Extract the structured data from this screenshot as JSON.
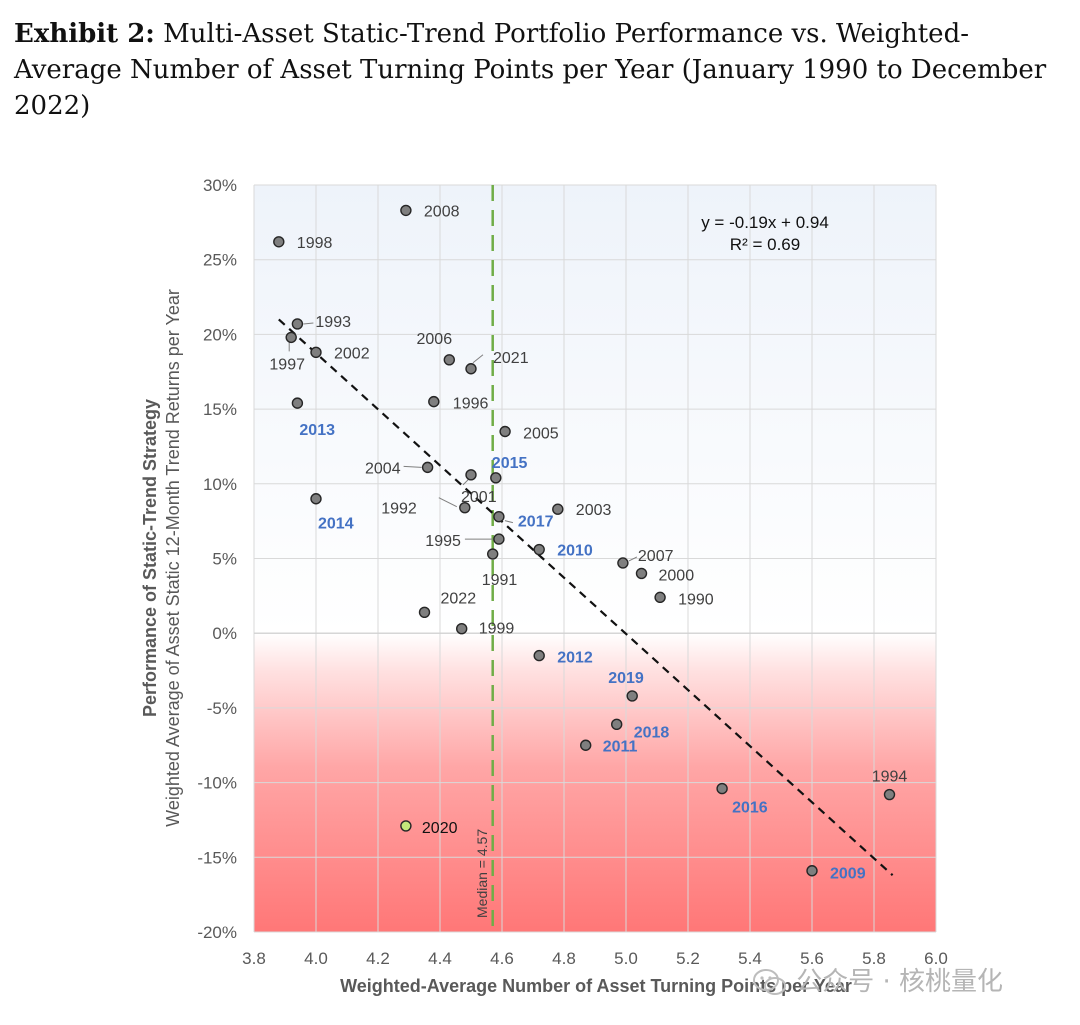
{
  "caption": {
    "label": "Exhibit 2:",
    "text": "Multi-Asset Static-Trend Portfolio Performance vs. Weighted-Average Number of Asset Turning Points per Year (January 1990 to December 2022)"
  },
  "watermark": {
    "text": "公众号 · 核桃量化"
  },
  "chart_data": {
    "type": "scatter",
    "title": "",
    "xlabel": "Weighted-Average Number of Asset Turning Points per Year",
    "ylabel_line1": "Performance of Static-Trend Strategy",
    "ylabel_line2": "Weighted Average of Asset Static 12-Month Trend Returns per Year",
    "xlim": [
      3.8,
      6.0
    ],
    "ylim": [
      -20,
      30
    ],
    "x_ticks": [
      3.8,
      4.0,
      4.2,
      4.4,
      4.6,
      4.8,
      5.0,
      5.2,
      5.4,
      5.6,
      5.8,
      6.0
    ],
    "x_tick_labels": [
      "3.8",
      "4.0",
      "4.2",
      "4.4",
      "4.6",
      "4.8",
      "5.0",
      "5.2",
      "5.4",
      "5.6",
      "5.8",
      "6.0"
    ],
    "y_ticks": [
      -20,
      -15,
      -10,
      -5,
      0,
      5,
      10,
      15,
      20,
      25,
      30
    ],
    "y_tick_labels": [
      "-20%",
      "-15%",
      "-10%",
      "-5%",
      "0%",
      "5%",
      "10%",
      "15%",
      "20%",
      "25%",
      "30%"
    ],
    "grid": true,
    "median_x": 4.57,
    "median_label": "Median = 4.57",
    "regression": {
      "equation": "y = -0.19x + 0.94",
      "r2": "R² = 0.69",
      "x_range": [
        3.88,
        5.86
      ],
      "y_range": [
        21.0,
        -16.2
      ]
    },
    "colors": {
      "point": "#7f7f7f",
      "highlight_point": "#c3e67a",
      "blue_label": "#4472c4",
      "dark_label": "#404040",
      "median_line": "#70ad47",
      "positive_band": "#eef3fa",
      "negative_band": "#ff7b7b"
    },
    "points": [
      {
        "year": "2008",
        "x": 4.29,
        "y": 28.3,
        "highlight": false
      },
      {
        "year": "1998",
        "x": 3.88,
        "y": 26.2,
        "highlight": false
      },
      {
        "year": "1993",
        "x": 3.94,
        "y": 20.7,
        "highlight": false
      },
      {
        "year": "1997",
        "x": 3.92,
        "y": 19.8,
        "highlight": false
      },
      {
        "year": "2002",
        "x": 4.0,
        "y": 18.8,
        "highlight": false
      },
      {
        "year": "2006",
        "x": 4.43,
        "y": 18.3,
        "highlight": false
      },
      {
        "year": "2021",
        "x": 4.5,
        "y": 17.7,
        "highlight": false
      },
      {
        "year": "1996",
        "x": 4.38,
        "y": 15.5,
        "highlight": false
      },
      {
        "year": "2013",
        "x": 3.94,
        "y": 15.4,
        "highlight": true
      },
      {
        "year": "2005",
        "x": 4.61,
        "y": 13.5,
        "highlight": false
      },
      {
        "year": "2004",
        "x": 4.36,
        "y": 11.1,
        "highlight": false
      },
      {
        "year": "2001",
        "x": 4.5,
        "y": 10.6,
        "highlight": false
      },
      {
        "year": "2015",
        "x": 4.58,
        "y": 10.4,
        "highlight": true
      },
      {
        "year": "2014",
        "x": 4.0,
        "y": 9.0,
        "highlight": true
      },
      {
        "year": "1992",
        "x": 4.48,
        "y": 8.4,
        "highlight": false
      },
      {
        "year": "2003",
        "x": 4.78,
        "y": 8.3,
        "highlight": false
      },
      {
        "year": "2017",
        "x": 4.59,
        "y": 7.8,
        "highlight": true
      },
      {
        "year": "1995",
        "x": 4.59,
        "y": 6.3,
        "highlight": false
      },
      {
        "year": "2010",
        "x": 4.72,
        "y": 5.6,
        "highlight": true
      },
      {
        "year": "1991",
        "x": 4.57,
        "y": 5.3,
        "highlight": false
      },
      {
        "year": "2007",
        "x": 4.99,
        "y": 4.7,
        "highlight": false
      },
      {
        "year": "2000",
        "x": 5.05,
        "y": 4.0,
        "highlight": false
      },
      {
        "year": "1990",
        "x": 5.11,
        "y": 2.4,
        "highlight": false
      },
      {
        "year": "2022",
        "x": 4.35,
        "y": 1.4,
        "highlight": false
      },
      {
        "year": "1999",
        "x": 4.47,
        "y": 0.3,
        "highlight": false
      },
      {
        "year": "2012",
        "x": 4.72,
        "y": -1.5,
        "highlight": true
      },
      {
        "year": "2019",
        "x": 5.02,
        "y": -4.2,
        "highlight": true
      },
      {
        "year": "2018",
        "x": 4.97,
        "y": -6.1,
        "highlight": true
      },
      {
        "year": "2011",
        "x": 4.87,
        "y": -7.5,
        "highlight": true
      },
      {
        "year": "1994",
        "x": 5.85,
        "y": -10.8,
        "highlight": false
      },
      {
        "year": "2016",
        "x": 5.31,
        "y": -10.4,
        "highlight": true
      },
      {
        "year": "2020",
        "x": 4.29,
        "y": -12.9,
        "highlight": false,
        "green": true
      },
      {
        "year": "2009",
        "x": 5.6,
        "y": -15.9,
        "highlight": true
      }
    ]
  }
}
